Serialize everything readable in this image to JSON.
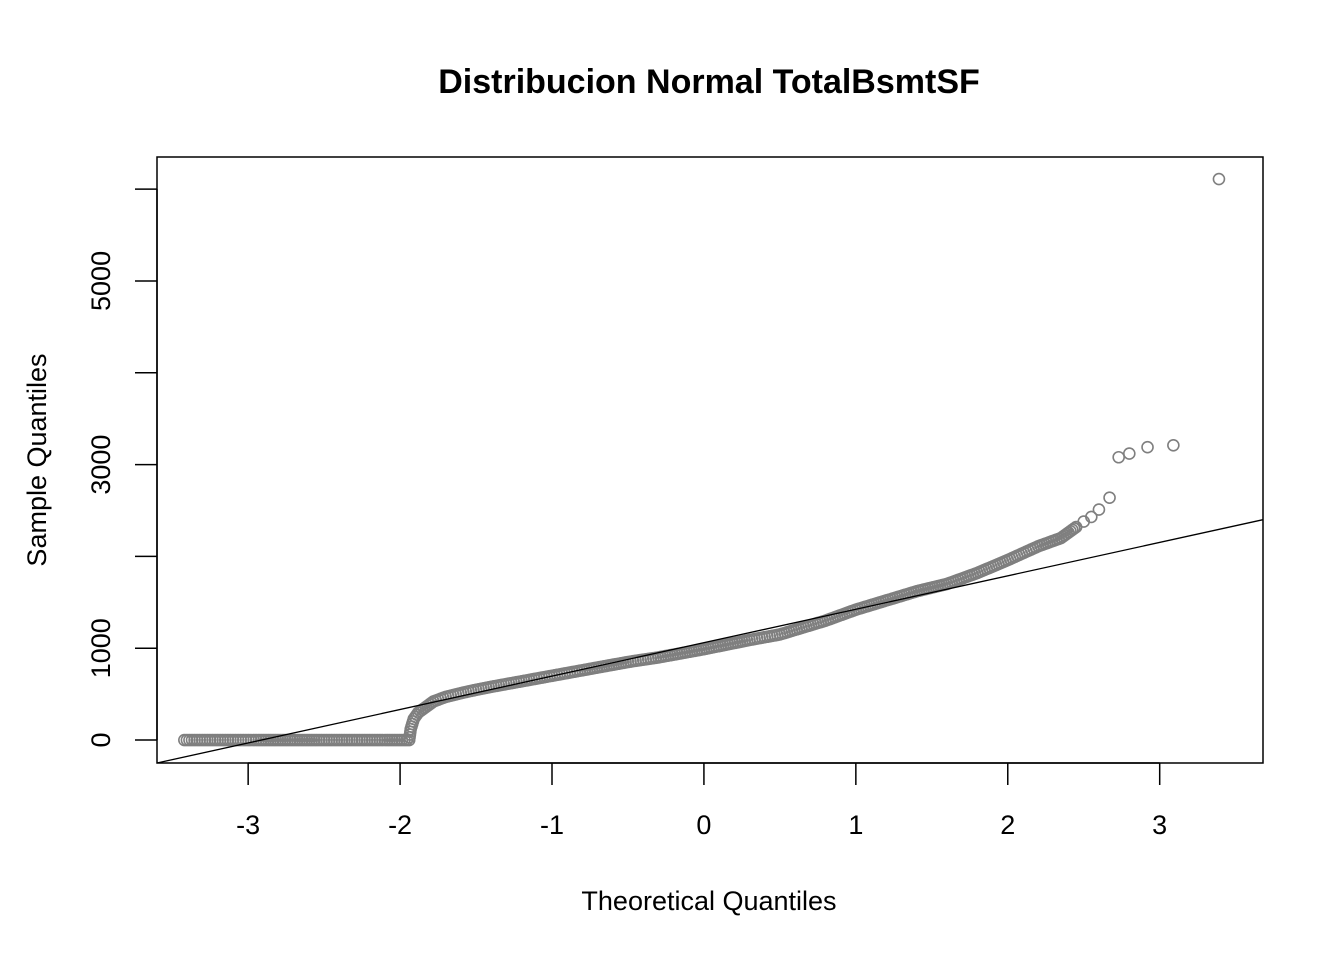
{
  "chart_data": {
    "type": "scatter",
    "title": "Distribucion Normal TotalBsmtSF",
    "xlabel": "Theoretical Quantiles",
    "ylabel": "Sample Quantiles",
    "xlim": [
      -3.6,
      3.68
    ],
    "ylim": [
      -250,
      6350
    ],
    "x_ticks": [
      -3,
      -2,
      -1,
      0,
      1,
      2,
      3
    ],
    "x_tick_labels": [
      "-3",
      "-2",
      "-1",
      "0",
      "1",
      "2",
      "3"
    ],
    "y_ticks": [
      0,
      1000,
      2000,
      3000,
      4000,
      5000,
      6000
    ],
    "y_tick_labels": [
      "0",
      "1000",
      "",
      "3000",
      "",
      "5000",
      ""
    ],
    "point_color": "#7f7f7f",
    "line_color": "#000000",
    "reference_line": {
      "x": [
        -3.6,
        3.68
      ],
      "y": [
        -250,
        2400
      ]
    },
    "anchors": [
      [
        -3.42,
        0
      ],
      [
        -3.1,
        0
      ],
      [
        -2.93,
        0
      ],
      [
        -2.82,
        0
      ],
      [
        -2.74,
        0
      ],
      [
        -2.66,
        0
      ],
      [
        -2.55,
        0
      ],
      [
        -2.45,
        0
      ],
      [
        -2.3,
        0
      ],
      [
        -2.1,
        0
      ],
      [
        -1.94,
        0
      ],
      [
        -1.93,
        120
      ],
      [
        -1.91,
        230
      ],
      [
        -1.88,
        300
      ],
      [
        -1.83,
        360
      ],
      [
        -1.78,
        420
      ],
      [
        -1.7,
        470
      ],
      [
        -1.55,
        530
      ],
      [
        -1.4,
        580
      ],
      [
        -1.2,
        640
      ],
      [
        -1.0,
        700
      ],
      [
        -0.8,
        760
      ],
      [
        -0.5,
        850
      ],
      [
        -0.3,
        900
      ],
      [
        0,
        990
      ],
      [
        0.3,
        1090
      ],
      [
        0.5,
        1150
      ],
      [
        0.8,
        1300
      ],
      [
        1.0,
        1420
      ],
      [
        1.2,
        1520
      ],
      [
        1.4,
        1620
      ],
      [
        1.6,
        1700
      ],
      [
        1.8,
        1820
      ],
      [
        2.0,
        1960
      ],
      [
        2.2,
        2110
      ],
      [
        2.35,
        2200
      ],
      [
        2.45,
        2320
      ]
    ],
    "tail_points": [
      [
        2.5,
        2380
      ],
      [
        2.55,
        2430
      ],
      [
        2.6,
        2510
      ],
      [
        2.67,
        2640
      ],
      [
        2.73,
        3080
      ],
      [
        2.8,
        3120
      ],
      [
        2.92,
        3190
      ],
      [
        3.09,
        3210
      ],
      [
        3.39,
        6110
      ]
    ]
  }
}
